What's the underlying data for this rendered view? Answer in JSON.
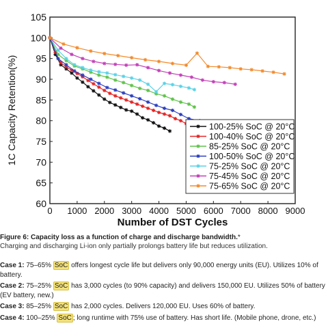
{
  "chart_data": {
    "type": "line",
    "xlabel": "Number of DST Cycles",
    "ylabel": "1C Capacity Retention(%)",
    "xlim": [
      0,
      9000
    ],
    "ylim": [
      60,
      105
    ],
    "xticks": [
      0,
      1000,
      2000,
      3000,
      4000,
      5000,
      6000,
      7000,
      8000,
      9000
    ],
    "yticks": [
      60,
      65,
      70,
      75,
      80,
      85,
      90,
      95,
      100,
      105
    ],
    "grid": false,
    "legend_position": "bottom-right",
    "series": [
      {
        "name": "100-25% SoC @ 20°C",
        "color": "#111111",
        "marker": "star",
        "x": [
          0,
          200,
          400,
          600,
          800,
          1000,
          1200,
          1400,
          1600,
          1800,
          2000,
          2200,
          2400,
          2600,
          2800,
          3000,
          3200,
          3400,
          3600,
          3800,
          4000,
          4200,
          4400
        ],
        "y": [
          100,
          96,
          93.5,
          92.5,
          91.5,
          90.3,
          89.3,
          88.2,
          87.2,
          86.2,
          85.2,
          84.4,
          83.8,
          83.2,
          82.6,
          82.3,
          81.6,
          80.7,
          80.2,
          79.5,
          78.7,
          78.2,
          77.5
        ]
      },
      {
        "name": "100-40% SoC @ 20°C",
        "color": "#e52525",
        "marker": "star",
        "x": [
          0,
          200,
          400,
          600,
          800,
          1000,
          1200,
          1400,
          1600,
          1800,
          2000,
          2200,
          2400,
          2600,
          2800,
          3000,
          3200,
          3400,
          3600,
          3800,
          4000,
          4200,
          4400,
          4600,
          4800,
          5000
        ],
        "y": [
          100,
          96.5,
          94,
          93,
          92.2,
          91.4,
          90.6,
          89.7,
          88.9,
          88.1,
          87.3,
          86.6,
          86,
          85.5,
          85,
          84.5,
          84,
          83.5,
          83,
          82.5,
          82,
          81.6,
          81.2,
          80.5,
          80,
          79.3
        ]
      },
      {
        "name": "85-25% SoC @ 20°C",
        "color": "#5fc24a",
        "marker": "star",
        "x": [
          0,
          300,
          600,
          900,
          1200,
          1500,
          1800,
          2100,
          2400,
          2700,
          3000,
          3300,
          3600,
          3900,
          4200,
          4500,
          4800,
          5100,
          5300
        ],
        "y": [
          100,
          96,
          94.5,
          93.2,
          92.5,
          91.7,
          91,
          90.5,
          89.8,
          89.2,
          88.5,
          87.8,
          87.3,
          86.5,
          86,
          85.2,
          84.5,
          84,
          83.3
        ]
      },
      {
        "name": "100-50% SoC @ 20°C",
        "color": "#2b3fbf",
        "marker": "star",
        "x": [
          0,
          300,
          600,
          900,
          1200,
          1500,
          1800,
          2100,
          2400,
          2700,
          3000,
          3300,
          3600,
          3900,
          4200,
          4500,
          4800,
          5100,
          5500
        ],
        "y": [
          100,
          95,
          93.5,
          92,
          91,
          90,
          89,
          88,
          87.4,
          86.7,
          86,
          85.3,
          84.5,
          83.7,
          83,
          82.5,
          81.5,
          80.5,
          80
        ]
      },
      {
        "name": "75-25% SoC @ 20°C",
        "color": "#59d2e6",
        "marker": "star",
        "x": [
          0,
          300,
          600,
          900,
          1200,
          1500,
          1800,
          2100,
          2400,
          2700,
          3000,
          3300,
          3600,
          3900,
          4200,
          4500,
          4800,
          5100,
          5300
        ],
        "y": [
          100,
          97,
          95,
          93.5,
          92.8,
          92.2,
          91.8,
          91.5,
          91.1,
          90.7,
          90.3,
          89.8,
          88.8,
          87,
          89,
          88.7,
          88.3,
          87.9,
          87.5
        ]
      },
      {
        "name": "75-45% SoC @ 20°C",
        "color": "#c33fb8",
        "marker": "star",
        "x": [
          0,
          400,
          800,
          1200,
          1600,
          2000,
          2400,
          2800,
          3200,
          3600,
          4000,
          4400,
          4800,
          5200,
          5600,
          6000,
          6400,
          6800
        ],
        "y": [
          100,
          97.5,
          96,
          95,
          94.3,
          93.8,
          93.6,
          93.4,
          93.5,
          92.8,
          92.1,
          91.5,
          91,
          90.5,
          89.8,
          89.4,
          89.2,
          88.8
        ]
      },
      {
        "name": "75-65% SoC @ 20°C",
        "color": "#f38a2a",
        "marker": "star",
        "x": [
          0,
          500,
          1000,
          1500,
          2000,
          2500,
          3000,
          3500,
          4000,
          4500,
          5000,
          5400,
          5800,
          6200,
          6600,
          7000,
          7400,
          7800,
          8200,
          8600
        ],
        "y": [
          100,
          98.5,
          97.6,
          96.8,
          96.2,
          95.7,
          95.2,
          94.7,
          94.3,
          93.8,
          93.4,
          96.3,
          93.1,
          93,
          92.8,
          92.5,
          92.3,
          92,
          91.7,
          91.3
        ]
      }
    ]
  },
  "caption": {
    "title": "Figure 6: Capacity loss as a function of charge and discharge bandwidth.",
    "title_mark": "*",
    "subtitle": "Charging and discharging Li-ion only partially prolongs battery life but reduces utilization."
  },
  "cases": [
    {
      "label": "Case 1:",
      "pre": " 75–65% ",
      "highlight": "SoC",
      "post": " offers longest cycle life but delivers only 90,000 energy units (EU). Utilizes 10% of",
      "cont": "battery."
    },
    {
      "label": "Case 2:",
      "pre": " 75–25% ",
      "highlight": "SoC",
      "post": " has 3,000 cycles (to 90% capacity) and delivers 150,000 EU. Utilizes 50% of battery",
      "cont": "(EV battery, new.)"
    },
    {
      "label": "Case 3:",
      "pre": " 85–25% ",
      "highlight": "SoC",
      "post": " has 2,000 cycles. Delivers 120,000 EU. Uses 60% of battery.",
      "cont": ""
    },
    {
      "label": "Case 4:",
      "pre": " 100–25% ",
      "highlight": "SoC",
      "post": "; long runtime with 75% use of battery. Has short life. (Mobile phone, drone, etc.)",
      "cont": ""
    }
  ]
}
